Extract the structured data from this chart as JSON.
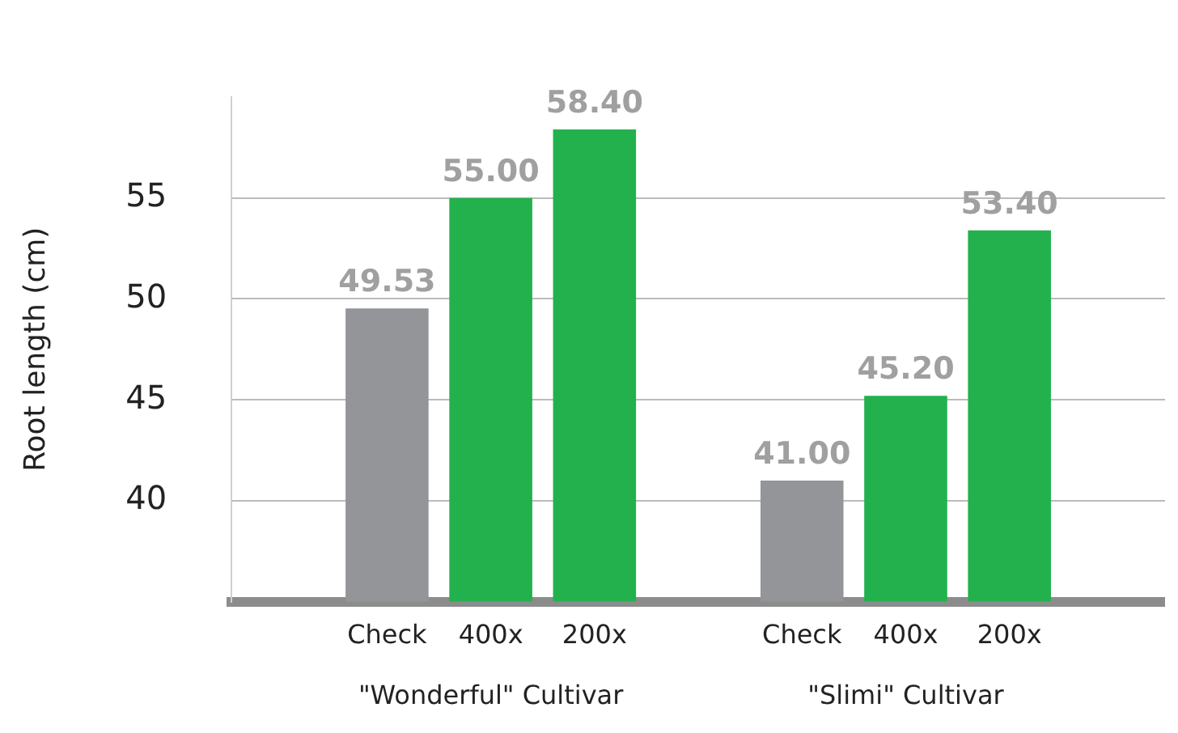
{
  "chart_data": {
    "type": "bar",
    "ylabel": "Root length (cm)",
    "categories": [
      null,
      "Check",
      "400x",
      "200x",
      null,
      "Check",
      "400x",
      "200x",
      null
    ],
    "values": [
      null,
      49.53,
      55.0,
      58.4,
      null,
      41.0,
      45.2,
      53.4,
      null
    ],
    "value_labels": [
      null,
      "49.53",
      "55.00",
      "58.40",
      null,
      "41.00",
      "45.20",
      "53.40",
      null
    ],
    "colors": [
      null,
      "#939598",
      "#22b14c",
      "#22b14c",
      null,
      "#939598",
      "#22b14c",
      "#22b14c",
      null
    ],
    "ylim": [
      35,
      60
    ],
    "yticks": [
      40,
      45,
      50,
      55
    ],
    "grid": "y",
    "legend": false,
    "annotations": [
      "\"Wonderful\" Cultivar",
      "\"Slimi\" Cultivar"
    ]
  }
}
